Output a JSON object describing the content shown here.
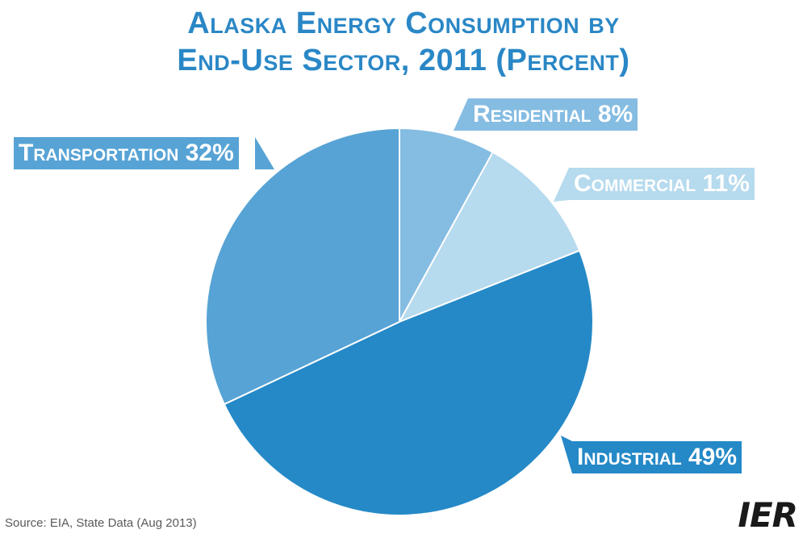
{
  "chart_data": {
    "type": "pie",
    "title_line1": "Alaska Energy Consumption by",
    "title_line2": "End-Use Sector, 2011 (Percent)",
    "categories": [
      "Residential",
      "Commercial",
      "Industrial",
      "Transportation"
    ],
    "values": [
      8,
      11,
      49,
      32
    ],
    "labels": [
      "Residential 8%",
      "Commercial 11%",
      "Industrial 49%",
      "Transportation 32%"
    ],
    "colors": [
      "#85bce2",
      "#b6daee",
      "#2589c7",
      "#57a3d5"
    ],
    "label_colors": [
      "#85bce2",
      "#b6daee",
      "#2589c7",
      "#57a3d5"
    ]
  },
  "footer": {
    "source": "Source: EIA, State Data (Aug 2013)",
    "logo": "IER"
  }
}
